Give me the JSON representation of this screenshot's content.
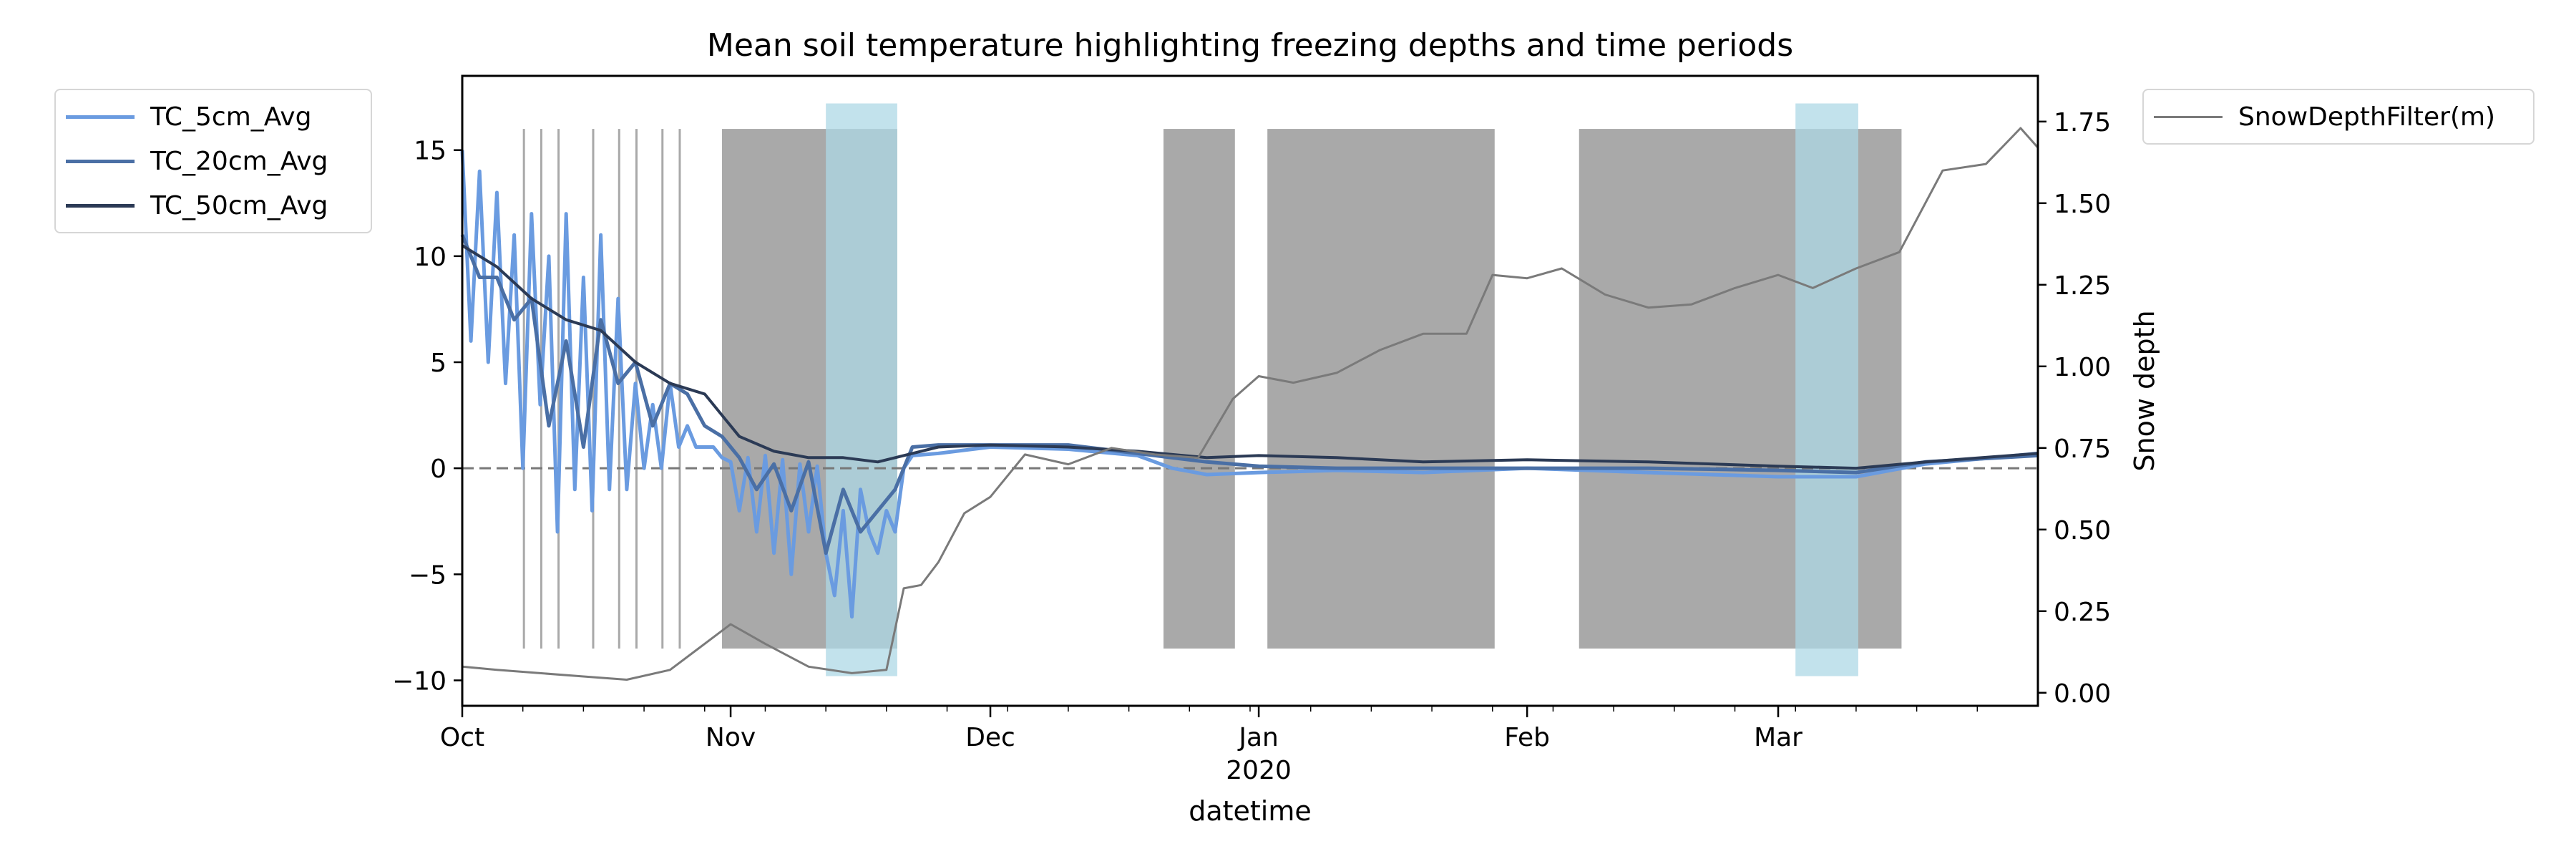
{
  "chart_data": {
    "type": "line",
    "title": "Mean soil temperature highlighting freezing depths and time periods",
    "xlabel": "datetime",
    "ylabel_left": "",
    "ylabel_right": "Snow depth",
    "x_range": [
      "2019-10-01",
      "2020-03-31"
    ],
    "x_ticks": [
      {
        "date": "2019-10-01",
        "label": "Oct",
        "sub": ""
      },
      {
        "date": "2019-11-01",
        "label": "Nov",
        "sub": ""
      },
      {
        "date": "2019-12-01",
        "label": "Dec",
        "sub": ""
      },
      {
        "date": "2020-01-01",
        "label": "Jan",
        "sub": "2020"
      },
      {
        "date": "2020-02-01",
        "label": "Feb",
        "sub": ""
      },
      {
        "date": "2020-03-01",
        "label": "Mar",
        "sub": ""
      }
    ],
    "y_left": {
      "lim": [
        -11.2,
        18.5
      ],
      "ticks": [
        -10,
        -5,
        0,
        5,
        10,
        15
      ]
    },
    "y_right": {
      "lim": [
        -0.04,
        1.89
      ],
      "ticks": [
        0.0,
        0.25,
        0.5,
        0.75,
        1.0,
        1.25,
        1.5,
        1.75
      ]
    },
    "zero_line": 0,
    "grid": false,
    "colors": {
      "TC_5cm_Avg": "#6a9be0",
      "TC_20cm_Avg": "#4a6fa5",
      "TC_50cm_Avg": "#2b3a55",
      "SnowDepthFilter(m)": "#7a7a7a",
      "freezing_band": "#a9a9a9",
      "deep_freeze_band": "#add8e6",
      "zero_line": "#777777"
    },
    "series": [
      {
        "name": "TC_5cm_Avg",
        "axis": "left",
        "x": [
          "2019-10-01",
          "2019-10-02",
          "2019-10-03",
          "2019-10-04",
          "2019-10-05",
          "2019-10-06",
          "2019-10-07",
          "2019-10-08",
          "2019-10-09",
          "2019-10-10",
          "2019-10-11",
          "2019-10-12",
          "2019-10-13",
          "2019-10-14",
          "2019-10-15",
          "2019-10-16",
          "2019-10-17",
          "2019-10-18",
          "2019-10-19",
          "2019-10-20",
          "2019-10-21",
          "2019-10-22",
          "2019-10-23",
          "2019-10-24",
          "2019-10-25",
          "2019-10-26",
          "2019-10-27",
          "2019-10-28",
          "2019-10-29",
          "2019-10-30",
          "2019-10-31",
          "2019-11-01",
          "2019-11-02",
          "2019-11-03",
          "2019-11-04",
          "2019-11-05",
          "2019-11-06",
          "2019-11-07",
          "2019-11-08",
          "2019-11-09",
          "2019-11-10",
          "2019-11-11",
          "2019-11-12",
          "2019-11-13",
          "2019-11-14",
          "2019-11-15",
          "2019-11-16",
          "2019-11-17",
          "2019-11-18",
          "2019-11-19",
          "2019-11-20",
          "2019-11-21",
          "2019-11-22",
          "2019-11-25",
          "2019-12-01",
          "2019-12-10",
          "2019-12-18",
          "2019-12-22",
          "2019-12-26",
          "2020-01-01",
          "2020-01-10",
          "2020-01-20",
          "2020-02-01",
          "2020-02-15",
          "2020-03-01",
          "2020-03-10",
          "2020-03-18",
          "2020-03-31"
        ],
        "values": [
          15,
          6,
          14,
          5,
          13,
          4,
          11,
          0,
          12,
          3,
          10,
          -3,
          12,
          -1,
          9,
          -2,
          11,
          -1,
          8,
          -1,
          4,
          0,
          3,
          0,
          4,
          1,
          2,
          1,
          1,
          1,
          0.5,
          0.3,
          -2,
          0.5,
          -3,
          0.6,
          -4,
          0.4,
          -5,
          0.2,
          -3,
          0.1,
          -4,
          -6,
          -2,
          -7,
          -1,
          -3,
          -4,
          -2,
          -3,
          0,
          0.6,
          0.7,
          1.0,
          0.9,
          0.6,
          0.0,
          -0.3,
          -0.2,
          -0.1,
          -0.2,
          0.0,
          -0.2,
          -0.4,
          -0.4,
          0.2,
          0.7
        ]
      },
      {
        "name": "TC_20cm_Avg",
        "axis": "left",
        "x": [
          "2019-10-01",
          "2019-10-03",
          "2019-10-05",
          "2019-10-07",
          "2019-10-09",
          "2019-10-11",
          "2019-10-13",
          "2019-10-15",
          "2019-10-17",
          "2019-10-19",
          "2019-10-21",
          "2019-10-23",
          "2019-10-25",
          "2019-10-27",
          "2019-10-29",
          "2019-10-31",
          "2019-11-02",
          "2019-11-04",
          "2019-11-06",
          "2019-11-08",
          "2019-11-10",
          "2019-11-12",
          "2019-11-14",
          "2019-11-16",
          "2019-11-18",
          "2019-11-20",
          "2019-11-22",
          "2019-11-25",
          "2019-12-01",
          "2019-12-10",
          "2019-12-18",
          "2019-12-26",
          "2020-01-01",
          "2020-01-10",
          "2020-01-20",
          "2020-02-01",
          "2020-02-15",
          "2020-03-01",
          "2020-03-10",
          "2020-03-18",
          "2020-03-31"
        ],
        "values": [
          11,
          9,
          9,
          7,
          8,
          2,
          6,
          1,
          7,
          4,
          5,
          2,
          4,
          3.5,
          2,
          1.5,
          0.5,
          -1,
          0.2,
          -2,
          0.3,
          -4,
          -1,
          -3,
          -2,
          -1,
          1.0,
          1.1,
          1.1,
          1.1,
          0.7,
          0.3,
          0.1,
          0.0,
          0.0,
          0.0,
          0.0,
          -0.1,
          -0.2,
          0.3,
          0.6
        ]
      },
      {
        "name": "TC_50cm_Avg",
        "axis": "left",
        "x": [
          "2019-10-01",
          "2019-10-05",
          "2019-10-09",
          "2019-10-13",
          "2019-10-17",
          "2019-10-21",
          "2019-10-25",
          "2019-10-29",
          "2019-11-02",
          "2019-11-06",
          "2019-11-10",
          "2019-11-14",
          "2019-11-18",
          "2019-11-22",
          "2019-11-25",
          "2019-12-01",
          "2019-12-10",
          "2019-12-18",
          "2019-12-26",
          "2020-01-01",
          "2020-01-10",
          "2020-01-20",
          "2020-02-01",
          "2020-02-15",
          "2020-03-01",
          "2020-03-10",
          "2020-03-18",
          "2020-03-31"
        ],
        "values": [
          10.5,
          9.5,
          8,
          7,
          6.5,
          5,
          4,
          3.5,
          1.5,
          0.8,
          0.5,
          0.5,
          0.3,
          0.7,
          1.0,
          1.1,
          1.0,
          0.8,
          0.5,
          0.6,
          0.5,
          0.3,
          0.4,
          0.3,
          0.1,
          0.0,
          0.3,
          0.7
        ]
      },
      {
        "name": "SnowDepthFilter(m)",
        "axis": "right",
        "x": [
          "2019-10-01",
          "2019-10-05",
          "2019-10-10",
          "2019-10-15",
          "2019-10-20",
          "2019-10-25",
          "2019-10-28",
          "2019-11-01",
          "2019-11-05",
          "2019-11-10",
          "2019-11-15",
          "2019-11-19",
          "2019-11-21",
          "2019-11-23",
          "2019-11-25",
          "2019-11-28",
          "2019-12-01",
          "2019-12-05",
          "2019-12-10",
          "2019-12-15",
          "2019-12-20",
          "2019-12-25",
          "2019-12-29",
          "2020-01-01",
          "2020-01-05",
          "2020-01-10",
          "2020-01-15",
          "2020-01-20",
          "2020-01-25",
          "2020-01-28",
          "2020-02-01",
          "2020-02-05",
          "2020-02-10",
          "2020-02-15",
          "2020-02-20",
          "2020-02-25",
          "2020-03-01",
          "2020-03-05",
          "2020-03-10",
          "2020-03-15",
          "2020-03-20",
          "2020-03-25",
          "2020-03-29",
          "2020-03-31"
        ],
        "values": [
          0.08,
          0.07,
          0.06,
          0.05,
          0.04,
          0.07,
          0.13,
          0.21,
          0.15,
          0.08,
          0.06,
          0.07,
          0.32,
          0.33,
          0.4,
          0.55,
          0.6,
          0.73,
          0.7,
          0.75,
          0.73,
          0.72,
          0.9,
          0.97,
          0.95,
          0.98,
          1.05,
          1.1,
          1.1,
          1.28,
          1.27,
          1.3,
          1.22,
          1.18,
          1.19,
          1.24,
          1.28,
          1.24,
          1.3,
          1.35,
          1.6,
          1.62,
          1.73,
          1.67
        ]
      }
    ],
    "freezing_bands": [
      [
        "2019-10-08",
        "2019-10-08"
      ],
      [
        "2019-10-10",
        "2019-10-10"
      ],
      [
        "2019-10-12",
        "2019-10-12"
      ],
      [
        "2019-10-16",
        "2019-10-16"
      ],
      [
        "2019-10-19",
        "2019-10-19"
      ],
      [
        "2019-10-21",
        "2019-10-21"
      ],
      [
        "2019-10-24",
        "2019-10-24"
      ],
      [
        "2019-10-26",
        "2019-10-26"
      ],
      [
        "2019-10-31",
        "2019-11-20"
      ],
      [
        "2019-12-21",
        "2019-12-29"
      ],
      [
        "2020-01-02",
        "2020-01-28"
      ],
      [
        "2020-02-07",
        "2020-03-15"
      ]
    ],
    "deep_freeze_bands": [
      [
        "2019-11-12",
        "2019-11-20"
      ],
      [
        "2020-03-03",
        "2020-03-10"
      ]
    ]
  },
  "legend_left": [
    {
      "label": "TC_5cm_Avg"
    },
    {
      "label": "TC_20cm_Avg"
    },
    {
      "label": "TC_50cm_Avg"
    }
  ],
  "legend_right": [
    {
      "label": "SnowDepthFilter(m)"
    }
  ]
}
